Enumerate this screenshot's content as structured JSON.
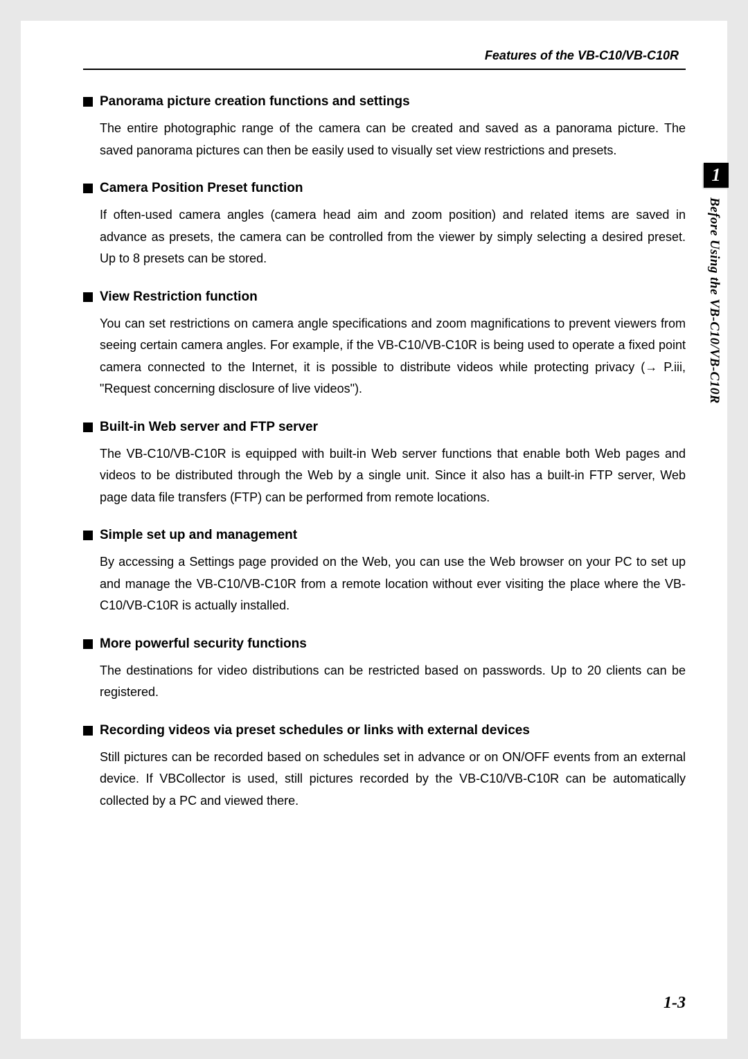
{
  "header": {
    "title": "Features of the VB-C10/VB-C10R"
  },
  "sideTab": {
    "number": "1",
    "label": "Before Using the VB-C10/VB-C10R"
  },
  "sections": [
    {
      "title": "Panorama picture creation functions and settings",
      "body": "The entire photographic range of the camera can be created and saved as a panorama picture. The saved panorama pictures can then be easily used to visually set view restrictions and presets."
    },
    {
      "title": "Camera Position Preset function",
      "body": "If often-used camera angles (camera head aim and zoom position) and related items are saved in advance as presets, the camera can be controlled from the viewer by simply selecting a desired preset. Up to 8 presets can be stored."
    },
    {
      "title": "View Restriction function",
      "body": "You can set restrictions on camera angle specifications and zoom magnifications to prevent viewers from seeing certain camera angles. For example, if the VB-C10/VB-C10R is being used to operate a fixed point camera connected to the Internet, it is possible to distribute videos while protecting privacy (→ P.iii, \"Request concerning disclosure of live videos\")."
    },
    {
      "title": "Built-in Web server and FTP server",
      "body": "The VB-C10/VB-C10R is equipped with built-in Web server functions that enable both Web pages and videos to be distributed through the Web by a single unit. Since it also has a built-in FTP server, Web page data file transfers (FTP) can be performed from remote locations."
    },
    {
      "title": "Simple set up and management",
      "body": "By accessing a Settings page provided on the Web, you can use the Web browser on your PC to set up and manage the VB-C10/VB-C10R from a remote location without ever visiting the place where the VB-C10/VB-C10R is actually installed."
    },
    {
      "title": "More powerful security functions",
      "body": "The destinations for video distributions can be restricted based on passwords. Up to 20 clients can be registered."
    },
    {
      "title": "Recording videos via preset schedules or links with external devices",
      "body": "Still pictures can be recorded based on schedules set in advance or on ON/OFF events from an external device. If VBCollector is used, still pictures recorded by the VB-C10/VB-C10R can be automatically collected by a PC and viewed there."
    }
  ],
  "pageNumber": "1-3"
}
